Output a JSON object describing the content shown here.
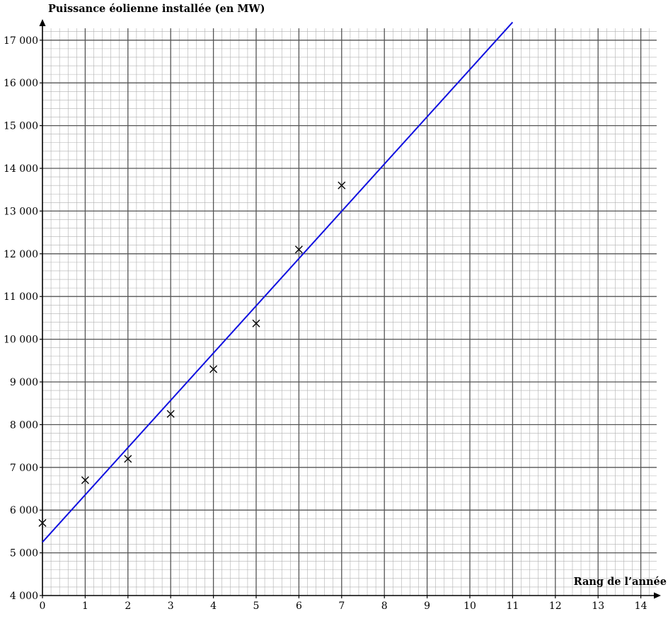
{
  "chart_data": {
    "type": "scatter",
    "title": "",
    "ylabel": "Puissance éolienne installée (en MW)",
    "xlabel": "Rang de l’année",
    "xlim": [
      0,
      14
    ],
    "ylim": [
      4000,
      17000
    ],
    "grid": true,
    "x_ticks": [
      0,
      1,
      2,
      3,
      4,
      5,
      6,
      7,
      8,
      9,
      10,
      11,
      12,
      13,
      14
    ],
    "x_tick_labels": [
      "0",
      "1",
      "2",
      "3",
      "4",
      "5",
      "6",
      "7",
      "8",
      "9",
      "10",
      "11",
      "12",
      "13",
      "14"
    ],
    "y_ticks": [
      4000,
      5000,
      6000,
      7000,
      8000,
      9000,
      10000,
      11000,
      12000,
      13000,
      14000,
      15000,
      16000,
      17000
    ],
    "y_tick_labels": [
      "4 000",
      "5 000",
      "6 000",
      "7 000",
      "8 000",
      "9 000",
      "10 000",
      "11 000",
      "12 000",
      "13 000",
      "14 000",
      "15 000",
      "16 000",
      "17 000"
    ],
    "series": [
      {
        "marker": "x",
        "color": "#000000",
        "x": [
          0,
          1,
          2,
          3,
          4,
          5,
          6,
          7
        ],
        "y": [
          5700,
          6700,
          7200,
          8250,
          9300,
          10370,
          12100,
          13600
        ]
      }
    ],
    "trend_line": {
      "color": "#1010e0",
      "x": [
        0,
        11
      ],
      "y": [
        5250,
        17420
      ]
    }
  }
}
